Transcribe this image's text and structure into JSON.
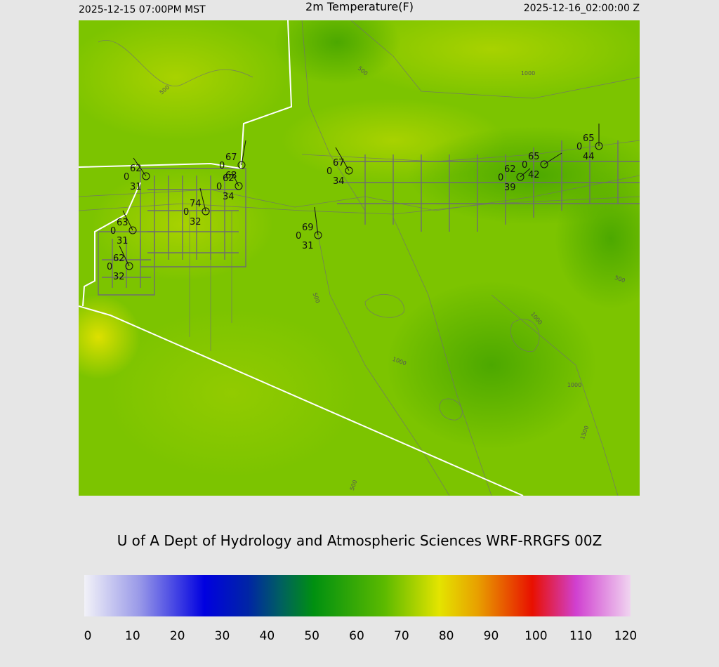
{
  "header": {
    "left": "2025-12-15 07:00PM MST",
    "title": "2m Temperature(F)",
    "right": "2025-12-16_02:00:00 Z"
  },
  "stations": [
    {
      "temperature": 62,
      "pressure": 0,
      "dewpoint": 31
    },
    {
      "temperature": 67,
      "pressure": 0,
      "dewpoint": 63
    },
    {
      "temperature": 62,
      "pressure": 0,
      "dewpoint": 34
    },
    {
      "temperature": 74,
      "pressure": 0,
      "dewpoint": 32
    },
    {
      "temperature": 63,
      "pressure": 0,
      "dewpoint": 31
    },
    {
      "temperature": 62,
      "pressure": 0,
      "dewpoint": 32
    },
    {
      "temperature": 67,
      "pressure": 0,
      "dewpoint": 34
    },
    {
      "temperature": 69,
      "pressure": 0,
      "dewpoint": 31
    },
    {
      "temperature": 62,
      "pressure": 0,
      "dewpoint": 39
    },
    {
      "temperature": 65,
      "pressure": 0,
      "dewpoint": 42
    },
    {
      "temperature": 65,
      "pressure": 0,
      "dewpoint": 44
    }
  ],
  "contour_labels": [
    500,
    500,
    1000,
    500,
    500,
    1000,
    1000,
    1000,
    1500,
    500
  ],
  "credit": "U of A Dept of Hydrology and Atmospheric Sciences WRF-RRGFS 00Z",
  "colorbar": {
    "range": [
      0,
      120
    ],
    "ticks": [
      0,
      10,
      20,
      30,
      40,
      50,
      60,
      70,
      80,
      90,
      100,
      110,
      120
    ]
  }
}
